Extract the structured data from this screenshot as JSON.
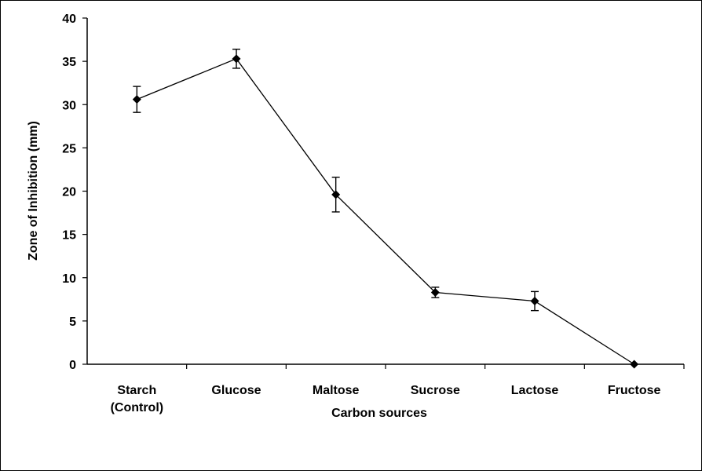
{
  "chart_data": {
    "type": "line",
    "title": "",
    "xlabel": "Carbon sources",
    "ylabel": "Zone of Inhibition (mm)",
    "ylim": [
      0,
      40
    ],
    "yticks": [
      "0",
      "5",
      "10",
      "15",
      "20",
      "25",
      "30",
      "35",
      "40"
    ],
    "grid": false,
    "categories": [
      [
        "Starch",
        "(Control)"
      ],
      [
        "Glucose"
      ],
      [
        "Maltose"
      ],
      [
        "Sucrose"
      ],
      [
        "Lactose"
      ],
      [
        "Fructose"
      ]
    ],
    "series": [
      {
        "values": [
          30.6,
          35.3,
          19.6,
          8.3,
          7.3,
          0.0
        ],
        "error": [
          1.5,
          1.1,
          2.0,
          0.6,
          1.1,
          0.0
        ],
        "color": "#000000",
        "marker": "diamond"
      }
    ]
  }
}
